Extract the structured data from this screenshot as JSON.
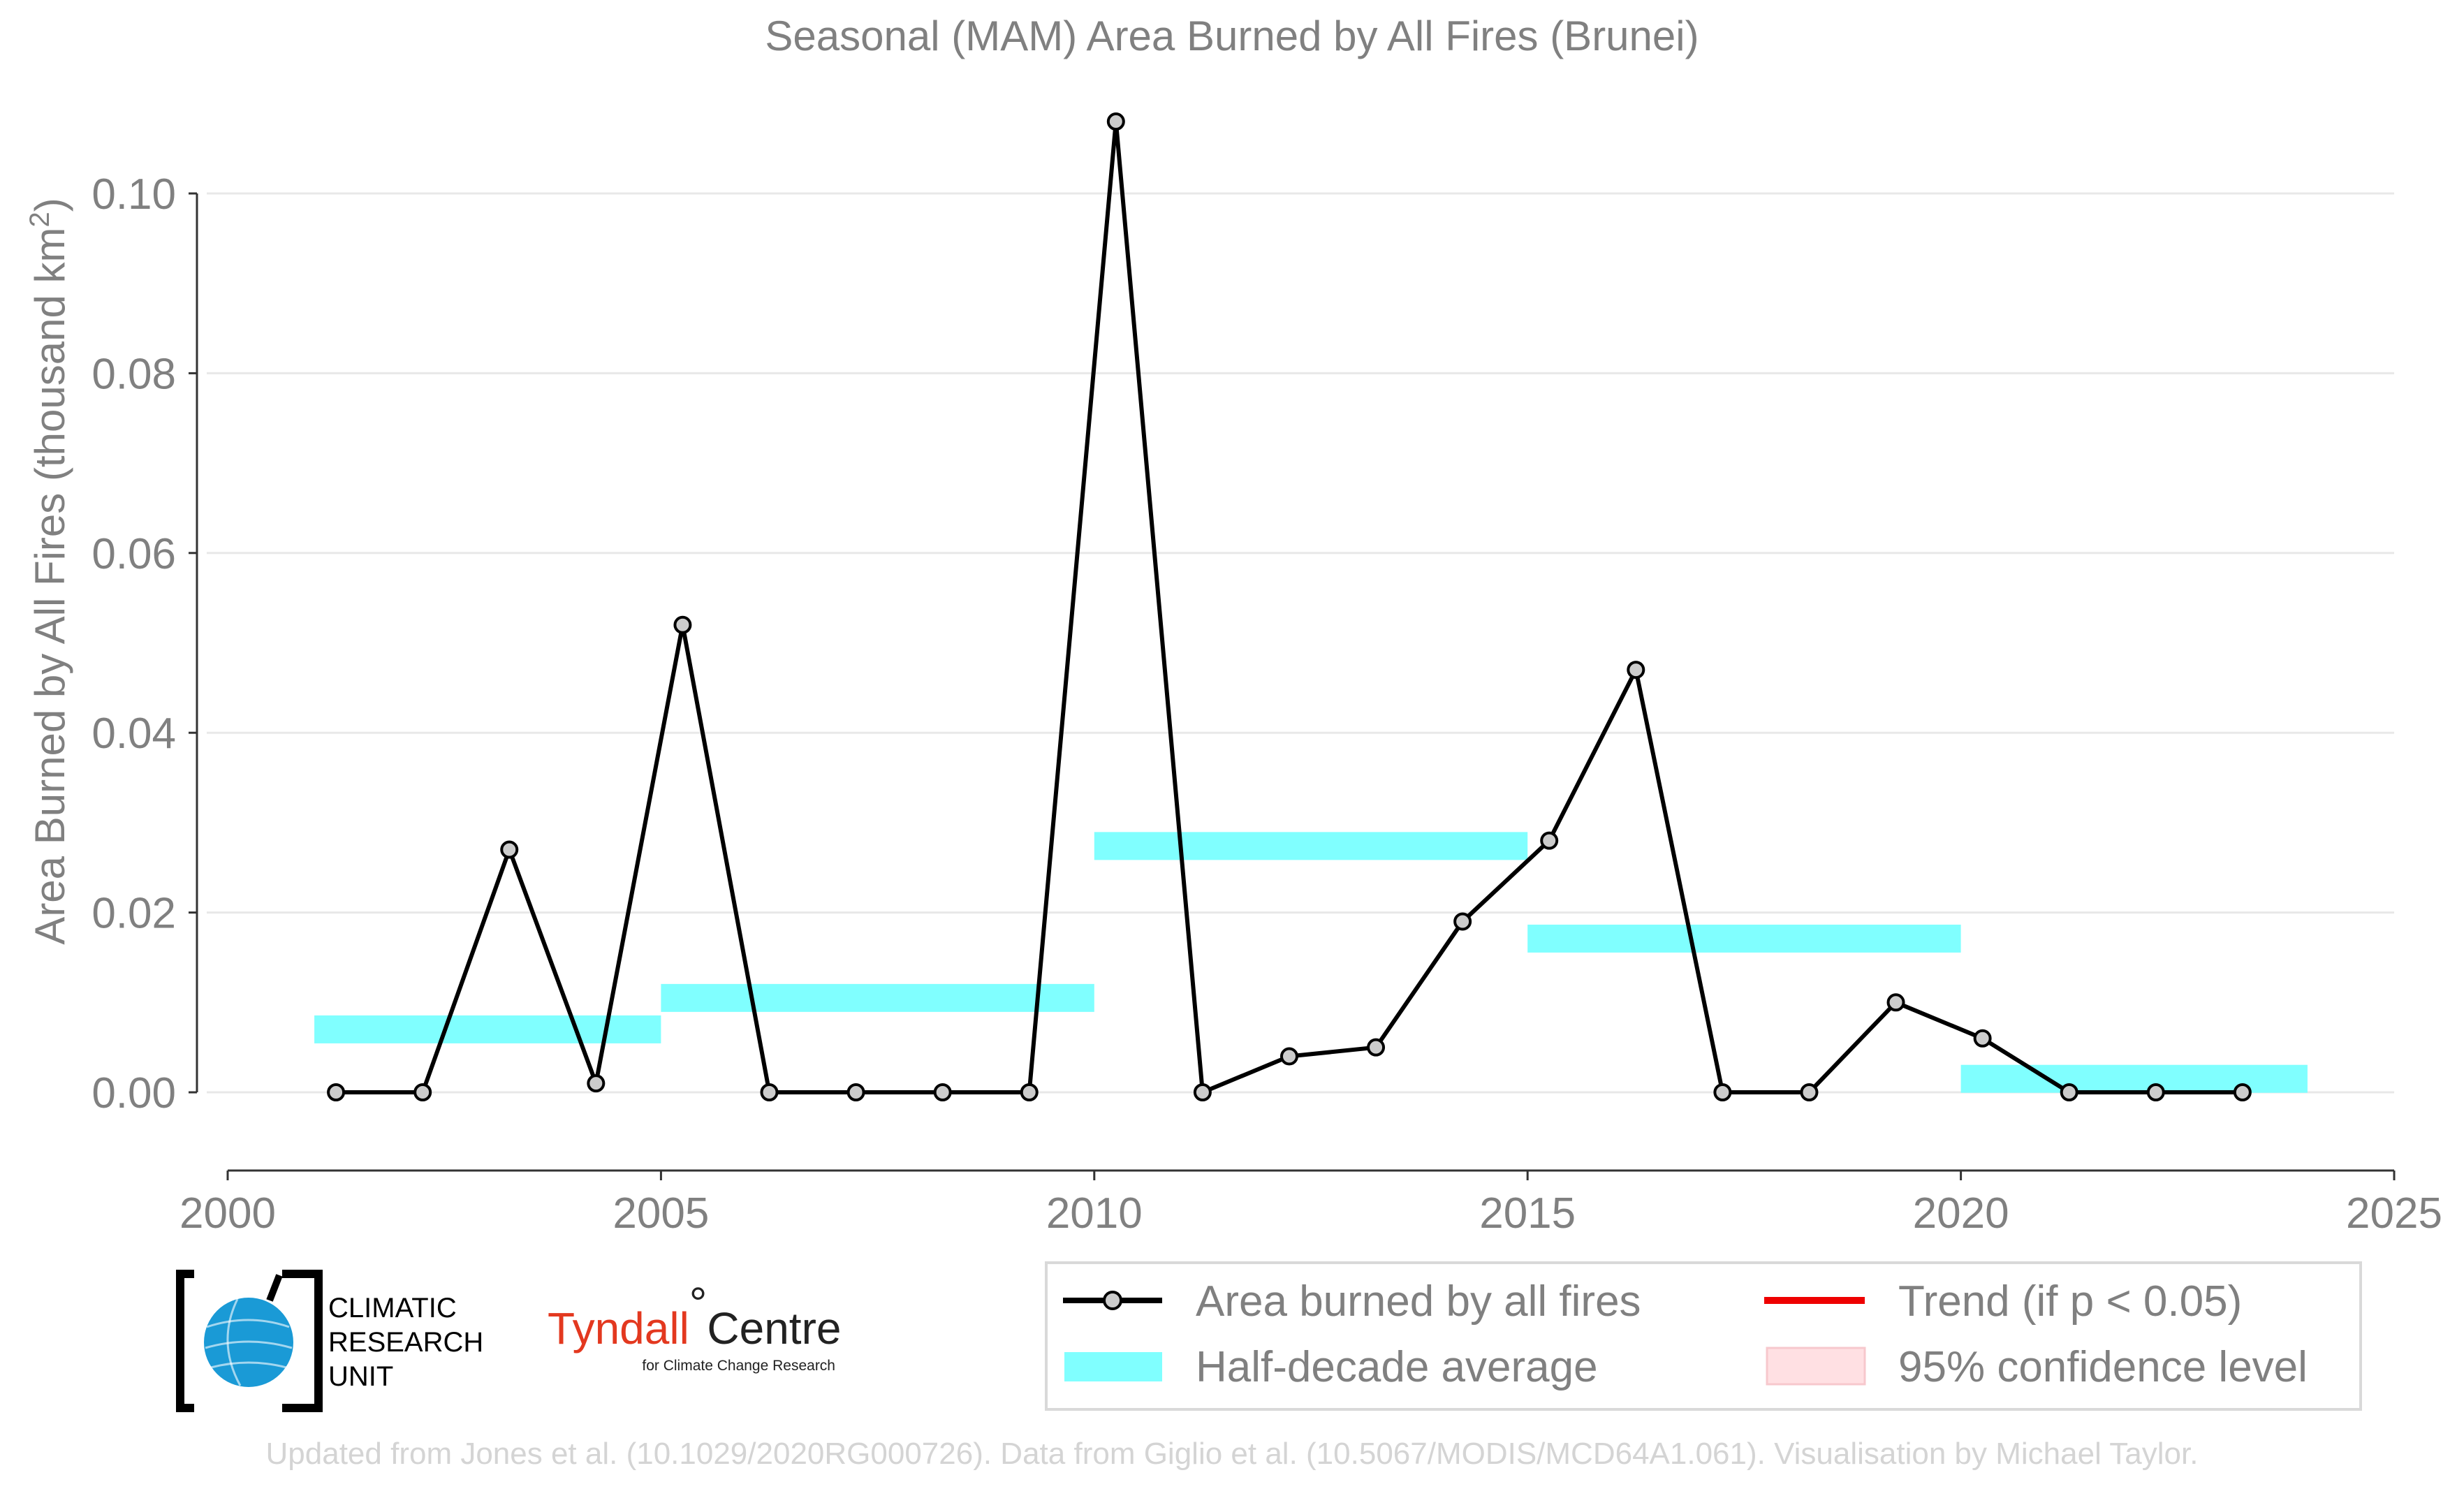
{
  "chart_data": {
    "type": "line",
    "title": "Seasonal (MAM) Area Burned by All Fires (Brunei)",
    "xlabel": "",
    "ylabel": "Area Burned by All Fires (thousand km²)",
    "ylabel_parts": {
      "main": "Area Burned by All Fires (thousand km",
      "sup": "2",
      "end": ")"
    },
    "xlim": [
      2000,
      2025
    ],
    "ylim": [
      -0.009,
      0.112
    ],
    "x_ticks": [
      2000,
      2005,
      2010,
      2015,
      2020,
      2025
    ],
    "y_ticks": [
      0.0,
      0.02,
      0.04,
      0.06,
      0.08,
      0.1
    ],
    "y_tick_labels": [
      "0.00",
      "0.02",
      "0.04",
      "0.06",
      "0.08",
      "0.10"
    ],
    "grid": "horizontal",
    "series": [
      {
        "name": "Area burned by all fires",
        "color": "#000000",
        "marker_fill": "#cccccc",
        "x": [
          2001.25,
          2002.25,
          2003.25,
          2004.25,
          2005.25,
          2006.25,
          2007.25,
          2008.25,
          2009.25,
          2010.25,
          2011.25,
          2012.25,
          2013.25,
          2014.25,
          2015.25,
          2016.25,
          2017.25,
          2018.25,
          2019.25,
          2020.25,
          2021.25,
          2022.25,
          2023.25
        ],
        "values": [
          0.0,
          0.0,
          0.027,
          0.001,
          0.052,
          0.0,
          0.0,
          0.0,
          0.0,
          0.108,
          0.0,
          0.004,
          0.005,
          0.019,
          0.028,
          0.047,
          0.0,
          0.0,
          0.01,
          0.006,
          0.0,
          0.0,
          0.0
        ]
      }
    ],
    "half_decade_average": {
      "name": "Half-decade average",
      "color": "#80ffff",
      "segments": [
        {
          "x_start": 2001,
          "x_end": 2005,
          "value": 0.007
        },
        {
          "x_start": 2005,
          "x_end": 2010,
          "value": 0.0105
        },
        {
          "x_start": 2010,
          "x_end": 2015,
          "value": 0.0274
        },
        {
          "x_start": 2015,
          "x_end": 2020,
          "value": 0.0171
        },
        {
          "x_start": 2020,
          "x_end": 2024,
          "value": 0.0015
        }
      ]
    },
    "legend": {
      "placement": "bottom-right",
      "entries": [
        {
          "label": "Area burned by all fires",
          "kind": "line-marker",
          "color": "#000000"
        },
        {
          "label": "Trend (if p < 0.05)",
          "kind": "line",
          "color": "#ee0000"
        },
        {
          "label": "Half-decade average",
          "kind": "band",
          "color": "#80ffff"
        },
        {
          "label": "95% confidence level",
          "kind": "fill",
          "color": "#ffe0e3"
        }
      ]
    }
  },
  "logos": {
    "cru": {
      "line1": "CLIMATIC",
      "line2": "RESEARCH",
      "line3": "UNIT",
      "icon": "globe-icon",
      "accent": "#1a9ad6"
    },
    "tyndall": {
      "main": "Tyndall",
      "degree": "°",
      "centre": "Centre",
      "sub": "for Climate Change Research",
      "accent": "#e3381f"
    }
  },
  "footer": "Updated from Jones et al. (10.1029/2020RG000726). Data from Giglio et al. (10.5067/MODIS/MCD64A1.061). Visualisation by Michael Taylor."
}
